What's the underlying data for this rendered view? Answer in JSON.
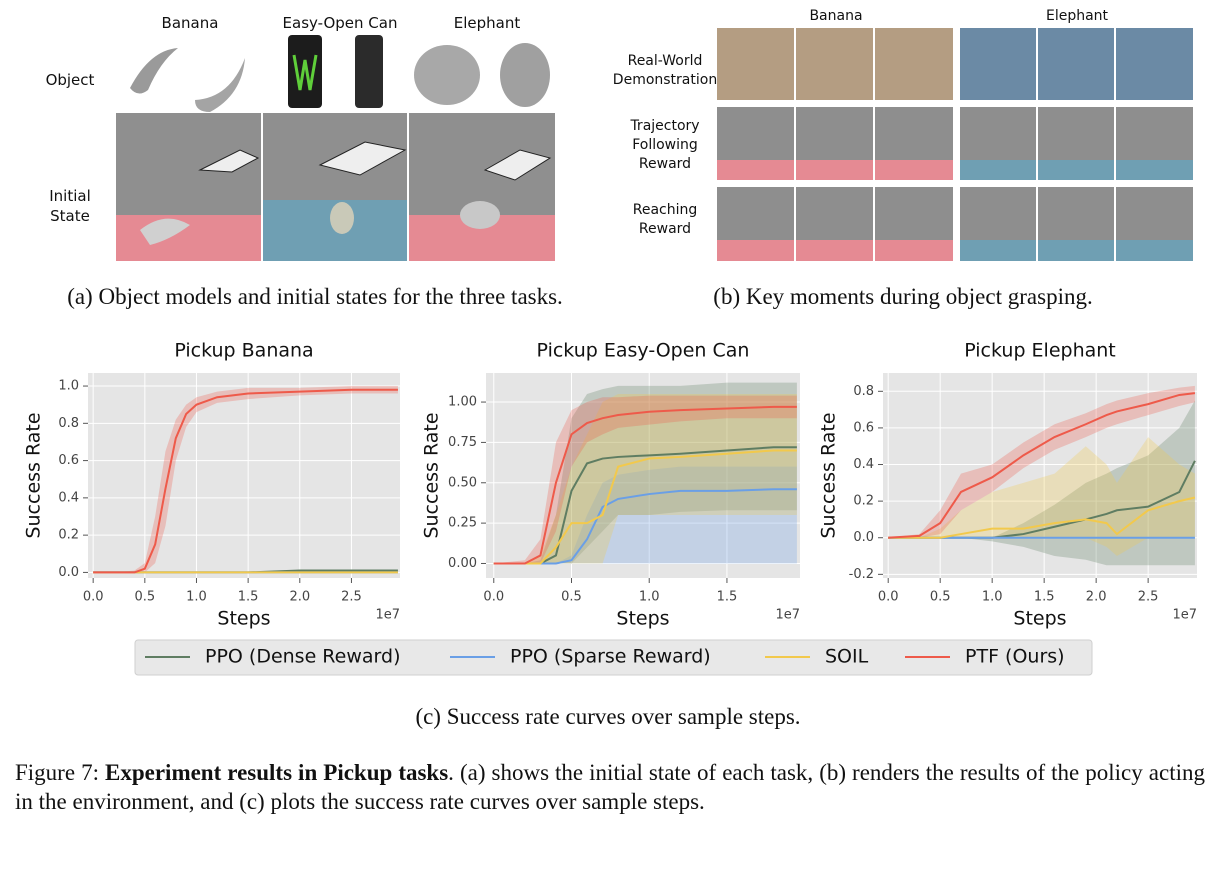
{
  "panel_a": {
    "columns": [
      "Banana",
      "Easy-Open Can",
      "Elephant"
    ],
    "rows": [
      "Object",
      "Initial State"
    ],
    "caption": "(a) Object models and initial states for the three tasks."
  },
  "panel_b": {
    "columns": [
      "Banana",
      "Elephant"
    ],
    "rows": [
      "Real-World Demonstration",
      "Trajectory Following Reward",
      "Reaching Reward"
    ],
    "caption": "(b) Key moments during object grasping."
  },
  "panel_c": {
    "caption": "(c) Success rate curves over sample steps."
  },
  "figure_caption": {
    "label": "Figure 7:",
    "bold": "Experiment results in Pickup tasks",
    "text": ". (a) shows the initial state of each task, (b) renders the results of the policy acting in the environment, and (c) plots the success rate curves over sample steps."
  },
  "chart_data": [
    {
      "type": "line",
      "title": "Pickup Banana",
      "ylabel": "Success Rate",
      "xlabel": "Steps",
      "x_offset_label": "1e7",
      "xlim": [
        -0.05,
        2.97
      ],
      "ylim": [
        -0.03,
        1.07
      ],
      "xticks": [
        {
          "value": 0,
          "label": "0.0"
        },
        0.5,
        {
          "value": 1,
          "label": "1.0"
        },
        1.5,
        {
          "value": 2,
          "label": "2.0"
        },
        2.5
      ],
      "yticks": [
        {
          "value": 0,
          "label": "0.0"
        },
        0.2,
        0.4,
        0.6,
        0.8,
        {
          "value": 1,
          "label": "1.0"
        }
      ],
      "x": [
        0,
        0.2,
        0.4,
        0.5,
        0.6,
        0.7,
        0.8,
        0.9,
        1.0,
        1.2,
        1.5,
        2.0,
        2.5,
        2.95
      ],
      "series": [
        {
          "name": "PPO (Dense Reward)",
          "color": "#5f7d62",
          "values": [
            0,
            0,
            0,
            0,
            0,
            0,
            0,
            0,
            0,
            0,
            0,
            0.01,
            0.01,
            0.01
          ]
        },
        {
          "name": "PPO (Sparse Reward)",
          "color": "#6a9fe6",
          "values": [
            0,
            0,
            0,
            0,
            0,
            0,
            0,
            0,
            0,
            0,
            0,
            0,
            0,
            0
          ]
        },
        {
          "name": "SOIL",
          "color": "#f2c94c",
          "values": [
            0,
            0,
            0,
            0,
            0,
            0,
            0,
            0,
            0,
            0,
            0,
            0,
            0,
            0
          ]
        },
        {
          "name": "PTF (Ours)",
          "color": "#ee5a4a",
          "values": [
            0,
            0,
            0,
            0.02,
            0.15,
            0.45,
            0.72,
            0.85,
            0.9,
            0.94,
            0.96,
            0.97,
            0.98,
            0.98
          ],
          "lower": [
            0,
            0,
            0,
            0,
            0.05,
            0.25,
            0.6,
            0.78,
            0.86,
            0.91,
            0.93,
            0.95,
            0.96,
            0.96
          ],
          "upper": [
            0,
            0,
            0.01,
            0.05,
            0.3,
            0.65,
            0.82,
            0.9,
            0.94,
            0.97,
            0.99,
            0.99,
            1.0,
            1.0
          ]
        }
      ]
    },
    {
      "type": "line",
      "title": "Pickup Easy-Open Can",
      "ylabel": "Success Rate",
      "xlabel": "Steps",
      "x_offset_label": "1e7",
      "xlim": [
        -0.05,
        1.97
      ],
      "ylim": [
        -0.09,
        1.18
      ],
      "xticks": [
        {
          "value": 0,
          "label": "0.0"
        },
        0.5,
        {
          "value": 1,
          "label": "1.0"
        },
        1.5
      ],
      "yticks": [
        {
          "value": 0,
          "label": "0.00"
        },
        0.25,
        {
          "value": 0.5,
          "label": "0.50"
        },
        0.75,
        {
          "value": 1,
          "label": "1.00"
        }
      ],
      "x": [
        0,
        0.2,
        0.3,
        0.4,
        0.5,
        0.6,
        0.7,
        0.8,
        1.0,
        1.2,
        1.5,
        1.8,
        1.95
      ],
      "series": [
        {
          "name": "PPO (Dense Reward)",
          "color": "#5f7d62",
          "values": [
            0,
            0,
            0,
            0.05,
            0.45,
            0.62,
            0.65,
            0.66,
            0.67,
            0.68,
            0.7,
            0.72,
            0.72
          ],
          "lower": [
            0,
            0,
            0,
            0,
            0,
            0.1,
            0.2,
            0.3,
            0.3,
            0.32,
            0.33,
            0.33,
            0.33
          ],
          "upper": [
            0,
            0,
            0.02,
            0.3,
            0.9,
            1.05,
            1.08,
            1.1,
            1.1,
            1.1,
            1.12,
            1.12,
            1.12
          ]
        },
        {
          "name": "PPO (Sparse Reward)",
          "color": "#6a9fe6",
          "values": [
            0,
            0,
            0,
            0,
            0.02,
            0.15,
            0.35,
            0.4,
            0.43,
            0.45,
            0.45,
            0.46,
            0.46
          ],
          "lower": [
            0,
            0,
            0,
            0,
            0,
            0,
            0,
            0,
            0,
            0,
            0,
            0,
            0
          ],
          "upper": [
            0,
            0,
            0,
            0,
            0.05,
            0.3,
            0.5,
            0.55,
            0.58,
            0.6,
            0.6,
            0.6,
            0.6
          ]
        },
        {
          "name": "SOIL",
          "color": "#f2c94c",
          "values": [
            0,
            0,
            0,
            0.1,
            0.25,
            0.25,
            0.3,
            0.6,
            0.65,
            0.66,
            0.68,
            0.7,
            0.7
          ],
          "lower": [
            0,
            0,
            0,
            0,
            0,
            0,
            0,
            0.3,
            0.3,
            0.3,
            0.3,
            0.3,
            0.3
          ],
          "upper": [
            0,
            0,
            0.05,
            0.3,
            0.6,
            0.8,
            1.0,
            1.05,
            1.05,
            1.05,
            1.05,
            1.05,
            1.05
          ]
        },
        {
          "name": "PTF (Ours)",
          "color": "#ee5a4a",
          "values": [
            0,
            0,
            0.05,
            0.5,
            0.8,
            0.87,
            0.9,
            0.92,
            0.94,
            0.95,
            0.96,
            0.97,
            0.97
          ],
          "lower": [
            0,
            0,
            0,
            0.2,
            0.6,
            0.75,
            0.8,
            0.84,
            0.86,
            0.88,
            0.9,
            0.9,
            0.9
          ],
          "upper": [
            0,
            0.02,
            0.15,
            0.75,
            0.95,
            1.0,
            1.03,
            1.03,
            1.04,
            1.04,
            1.04,
            1.04,
            1.04
          ]
        }
      ]
    },
    {
      "type": "line",
      "title": "Pickup Elephant",
      "ylabel": "Success Rate",
      "xlabel": "Steps",
      "x_offset_label": "1e7",
      "xlim": [
        -0.05,
        2.97
      ],
      "ylim": [
        -0.22,
        0.9
      ],
      "xticks": [
        {
          "value": 0,
          "label": "0.0"
        },
        0.5,
        {
          "value": 1,
          "label": "1.0"
        },
        1.5,
        {
          "value": 2,
          "label": "2.0"
        },
        2.5
      ],
      "yticks": [
        -0.2,
        {
          "value": 0,
          "label": "0.0"
        },
        0.2,
        0.4,
        0.6,
        0.8
      ],
      "x": [
        0,
        0.3,
        0.5,
        0.7,
        1.0,
        1.3,
        1.6,
        1.9,
        2.1,
        2.2,
        2.5,
        2.8,
        2.95
      ],
      "series": [
        {
          "name": "PPO (Dense Reward)",
          "color": "#5f7d62",
          "values": [
            0,
            0,
            0,
            0,
            0,
            0.02,
            0.06,
            0.1,
            0.13,
            0.15,
            0.17,
            0.25,
            0.42
          ],
          "lower": [
            0,
            0,
            0,
            0,
            -0.02,
            -0.05,
            -0.1,
            -0.12,
            -0.15,
            -0.15,
            -0.15,
            -0.15,
            -0.15
          ],
          "upper": [
            0,
            0,
            0,
            0,
            0,
            0.08,
            0.18,
            0.3,
            0.35,
            0.38,
            0.45,
            0.6,
            0.75
          ]
        },
        {
          "name": "PPO (Sparse Reward)",
          "color": "#6a9fe6",
          "values": [
            0,
            0,
            0,
            0,
            0,
            0,
            0,
            0,
            0,
            0,
            0,
            0,
            0
          ]
        },
        {
          "name": "SOIL",
          "color": "#f2c94c",
          "values": [
            0,
            0,
            0,
            0.02,
            0.05,
            0.05,
            0.08,
            0.1,
            0.08,
            0.02,
            0.15,
            0.2,
            0.22
          ],
          "lower": [
            0,
            0,
            0,
            0,
            0,
            0,
            0,
            0,
            -0.05,
            -0.1,
            0,
            0,
            0
          ],
          "upper": [
            0,
            0,
            0.05,
            0.15,
            0.25,
            0.3,
            0.35,
            0.5,
            0.4,
            0.3,
            0.55,
            0.4,
            0.35
          ]
        },
        {
          "name": "PTF (Ours)",
          "color": "#ee5a4a",
          "values": [
            0,
            0.01,
            0.08,
            0.25,
            0.33,
            0.45,
            0.55,
            0.62,
            0.67,
            0.69,
            0.73,
            0.78,
            0.79
          ],
          "lower": [
            0,
            0,
            0.02,
            0.15,
            0.25,
            0.38,
            0.48,
            0.55,
            0.6,
            0.62,
            0.67,
            0.72,
            0.74
          ],
          "upper": [
            0,
            0.02,
            0.15,
            0.35,
            0.4,
            0.52,
            0.62,
            0.68,
            0.73,
            0.75,
            0.79,
            0.82,
            0.83
          ]
        }
      ]
    }
  ]
}
